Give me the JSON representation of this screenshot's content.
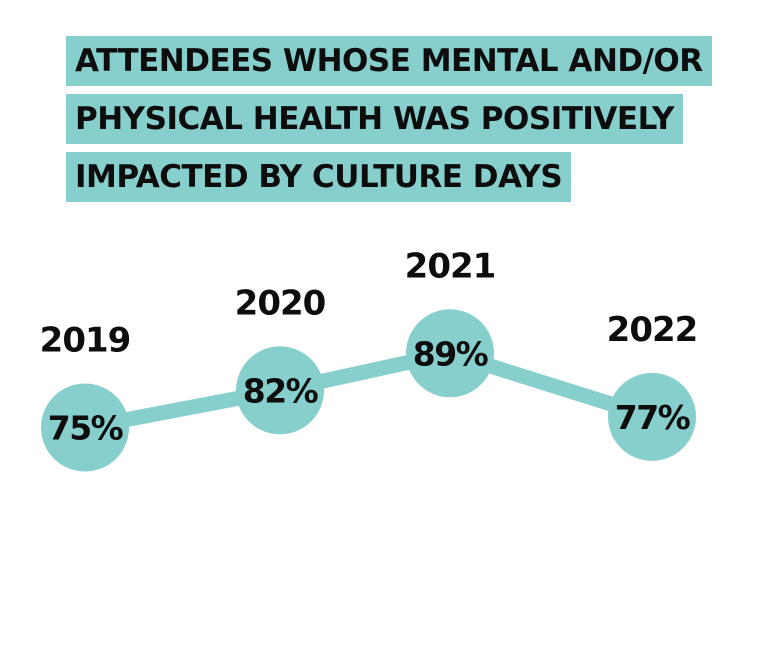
{
  "title_lines": [
    "ATTENDEES WHOSE MENTAL AND/OR",
    "PHYSICAL HEALTH WAS POSITIVELY",
    "IMPACTED BY CULTURE DAYS"
  ],
  "chart_data": {
    "type": "line",
    "categories": [
      "2019",
      "2020",
      "2021",
      "2022"
    ],
    "values": [
      75,
      82,
      89,
      77
    ],
    "value_labels": [
      "75%",
      "82%",
      "89%",
      "77%"
    ],
    "unit": "%",
    "grid": false,
    "legend": "none"
  },
  "colors": {
    "accent": "#86cfcc",
    "text": "#0d0d0d",
    "background": "#ffffff"
  }
}
